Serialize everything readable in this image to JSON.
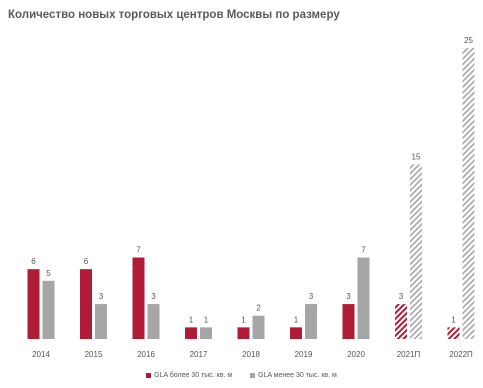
{
  "title": "Количество новых торговых центров Москвы по размеру",
  "colors": {
    "series1": "#b01c36",
    "series2": "#a6a6a6"
  },
  "chart_data": {
    "type": "bar",
    "title": "Количество новых торговых центров Москвы по размеру",
    "categories": [
      "2014",
      "2015",
      "2016",
      "2017",
      "2018",
      "2019",
      "2020",
      "2021П",
      "2022П"
    ],
    "forecast_categories": [
      "2021П",
      "2022П"
    ],
    "series": [
      {
        "name": "GLA более 30 тыс. кв. м",
        "values": [
          6,
          6,
          7,
          1,
          1,
          1,
          3,
          3,
          1
        ],
        "data_labels": [
          "6",
          "6",
          "7",
          "1",
          "1",
          "1",
          "3",
          "3",
          "1"
        ]
      },
      {
        "name": "GLA менее 30 тыс. кв. м",
        "values": [
          5,
          3,
          3,
          1,
          2,
          3,
          7,
          15,
          25
        ],
        "data_labels": [
          "5",
          "3",
          "3",
          "1",
          "2",
          "3",
          "7",
          "15",
          "25"
        ]
      }
    ],
    "ylim": [
      0,
      25
    ],
    "grid": false,
    "legend_position": "bottom"
  }
}
